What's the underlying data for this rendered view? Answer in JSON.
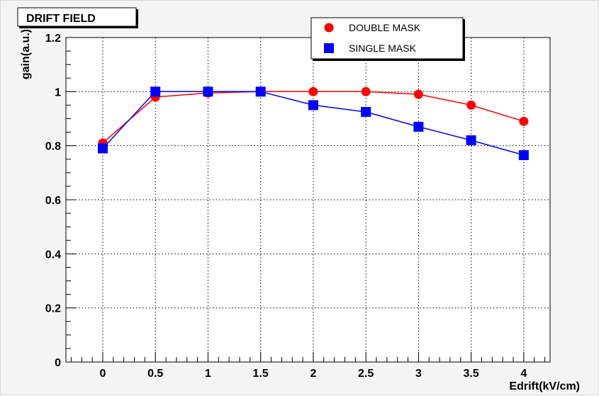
{
  "chart_data": {
    "type": "line",
    "title": "DRIFT FIELD",
    "xlabel": "Edrift(kV/cm)",
    "ylabel": "gain(a.u.)",
    "x": [
      0,
      0.5,
      1,
      1.5,
      2,
      2.5,
      3,
      3.5,
      4
    ],
    "x_tick_labels": [
      "0",
      "0.5",
      "1",
      "1.5",
      "2",
      "2.5",
      "3",
      "3.5",
      "4"
    ],
    "y_tick_labels": [
      "0",
      "0.2",
      "0.4",
      "0.6",
      "0.8",
      "1",
      "1.2"
    ],
    "xlim": [
      -0.35,
      4.25
    ],
    "ylim": [
      0,
      1.2
    ],
    "grid": true,
    "legend_position": "top-right",
    "series": [
      {
        "name": "DOUBLE MASK",
        "color": "#ff0000",
        "marker": "circle",
        "values": [
          0.81,
          0.98,
          0.995,
          1.0,
          1.0,
          1.0,
          0.99,
          0.95,
          0.89
        ]
      },
      {
        "name": "SINGLE MASK",
        "color": "#0000ff",
        "marker": "square",
        "values": [
          0.79,
          1.0,
          1.0,
          1.0,
          0.95,
          0.925,
          0.87,
          0.82,
          0.765
        ]
      }
    ]
  }
}
